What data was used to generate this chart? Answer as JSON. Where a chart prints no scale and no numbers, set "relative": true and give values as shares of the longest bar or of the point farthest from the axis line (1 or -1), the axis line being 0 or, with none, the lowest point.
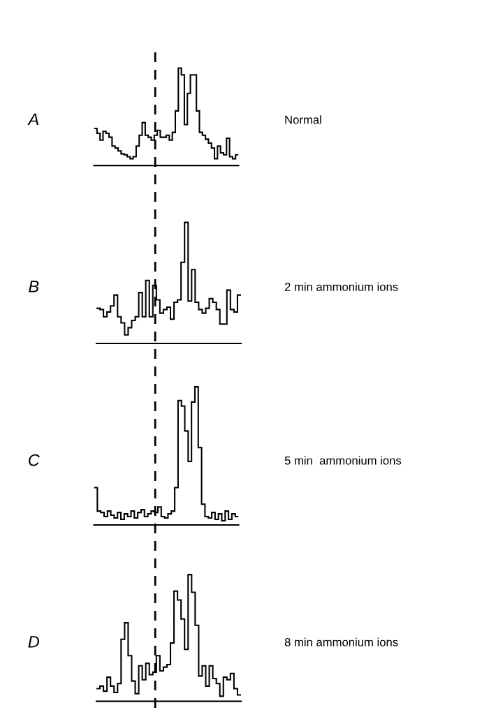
{
  "chart_data": [
    {
      "type": "step",
      "title": "A",
      "annotations": [
        "Normal"
      ],
      "relative": true,
      "categories": [
        null,
        null,
        null,
        null,
        null,
        null,
        null,
        null,
        null,
        null,
        null,
        null,
        null,
        null,
        null,
        null,
        null,
        null,
        null,
        null,
        null,
        null,
        null,
        null,
        null,
        null,
        null,
        null,
        null,
        null,
        null,
        null,
        null,
        null,
        null,
        null,
        null,
        null,
        null,
        null,
        null,
        null,
        null,
        null,
        null,
        null,
        null,
        null
      ],
      "series": [
        {
          "color": "#000000",
          "values": [
            0.38,
            0.33,
            0.26,
            0.35,
            0.33,
            0.29,
            0.2,
            0.18,
            0.15,
            0.12,
            0.11,
            0.09,
            0.07,
            0.09,
            0.2,
            0.31,
            0.44,
            0.31,
            0.29,
            0.26,
            0.31,
            0.36,
            0.29,
            0.29,
            0.31,
            0.26,
            0.34,
            0.56,
            1.0,
            0.93,
            0.42,
            0.74,
            0.93,
            0.93,
            0.56,
            0.34,
            0.31,
            0.27,
            0.23,
            0.18,
            0.07,
            0.2,
            0.13,
            0.11,
            0.28,
            0.09,
            0.07,
            0.11
          ]
        }
      ],
      "legend": false,
      "tick_labels": false
    },
    {
      "type": "step",
      "title": "B",
      "annotations": [
        "2 min ammonium ions"
      ],
      "relative": true,
      "categories": [
        null,
        null,
        null,
        null,
        null,
        null,
        null,
        null,
        null,
        null,
        null,
        null,
        null,
        null,
        null,
        null,
        null,
        null,
        null,
        null,
        null,
        null,
        null,
        null,
        null,
        null,
        null,
        null,
        null,
        null,
        null,
        null,
        null,
        null,
        null,
        null,
        null,
        null,
        null,
        null,
        null
      ],
      "series": [
        {
          "color": "#000000",
          "values": [
            0.29,
            0.28,
            0.22,
            0.26,
            0.31,
            0.4,
            0.22,
            0.17,
            0.07,
            0.13,
            0.19,
            0.22,
            0.42,
            0.22,
            0.52,
            0.22,
            0.48,
            0.36,
            0.25,
            0.28,
            0.3,
            0.2,
            0.34,
            0.36,
            0.67,
            1.0,
            0.35,
            0.61,
            0.34,
            0.28,
            0.25,
            0.29,
            0.37,
            0.34,
            0.28,
            0.16,
            0.16,
            0.44,
            0.28,
            0.26,
            0.4
          ]
        }
      ],
      "legend": false,
      "tick_labels": false
    },
    {
      "type": "step",
      "title": "C",
      "annotations": [
        "5 min  ammonium ions"
      ],
      "relative": true,
      "categories": [
        null,
        null,
        null,
        null,
        null,
        null,
        null,
        null,
        null,
        null,
        null,
        null,
        null,
        null,
        null,
        null,
        null,
        null,
        null,
        null,
        null,
        null,
        null,
        null,
        null,
        null,
        null,
        null,
        null,
        null,
        null,
        null,
        null,
        null,
        null,
        null,
        null,
        null,
        null,
        null,
        null,
        null,
        null
      ],
      "series": [
        {
          "color": "#000000",
          "values": [
            0.27,
            0.1,
            0.09,
            0.06,
            0.1,
            0.07,
            0.05,
            0.09,
            0.04,
            0.08,
            0.06,
            0.1,
            0.05,
            0.09,
            0.11,
            0.06,
            0.08,
            0.1,
            0.09,
            0.13,
            0.06,
            0.05,
            0.08,
            0.1,
            0.27,
            0.9,
            0.86,
            0.68,
            0.46,
            0.89,
            1.0,
            0.56,
            0.15,
            0.06,
            0.05,
            0.09,
            0.04,
            0.08,
            0.03,
            0.1,
            0.04,
            0.08,
            0.06
          ]
        }
      ],
      "legend": false,
      "tick_labels": false
    },
    {
      "type": "step",
      "title": "D",
      "annotations": [
        "8 min ammonium ions"
      ],
      "relative": true,
      "categories": [
        null,
        null,
        null,
        null,
        null,
        null,
        null,
        null,
        null,
        null,
        null,
        null,
        null,
        null,
        null,
        null,
        null,
        null,
        null,
        null,
        null,
        null,
        null,
        null,
        null,
        null,
        null,
        null,
        null,
        null,
        null,
        null,
        null,
        null,
        null,
        null,
        null,
        null,
        null,
        null,
        null
      ],
      "series": [
        {
          "color": "#000000",
          "values": [
            0.1,
            0.12,
            0.08,
            0.19,
            0.12,
            0.07,
            0.14,
            0.49,
            0.62,
            0.36,
            0.16,
            0.06,
            0.28,
            0.17,
            0.3,
            0.21,
            0.23,
            0.36,
            0.24,
            0.27,
            0.29,
            0.46,
            0.87,
            0.8,
            0.65,
            0.41,
            1.0,
            0.86,
            0.6,
            0.2,
            0.28,
            0.12,
            0.28,
            0.18,
            0.14,
            0.04,
            0.19,
            0.17,
            0.22,
            0.1,
            0.05
          ]
        }
      ],
      "legend": false,
      "tick_labels": false
    }
  ]
}
